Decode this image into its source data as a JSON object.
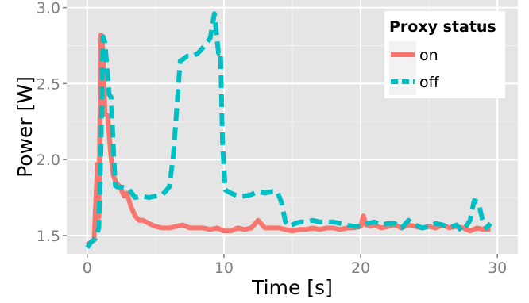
{
  "chart_data": {
    "type": "line",
    "title": "",
    "xlabel": "Time [s]",
    "ylabel": "Power [W]",
    "xlim": [
      -1.5,
      31.5
    ],
    "ylim": [
      1.38,
      3.05
    ],
    "xticks": [
      0,
      10,
      20,
      30
    ],
    "yticks": [
      1.5,
      2.0,
      2.5,
      3.0
    ],
    "ytick_labels": [
      "1.5",
      "2.0",
      "2.5",
      "3.0"
    ],
    "grid": true,
    "legend": {
      "title": "Proxy status",
      "position": "top-right"
    },
    "series": [
      {
        "name": "on",
        "color": "#f8766d",
        "dash": "solid",
        "x": [
          0.0,
          0.3,
          0.5,
          0.75,
          0.85,
          1.0,
          1.1,
          1.3,
          1.5,
          1.7,
          1.9,
          2.1,
          2.3,
          2.5,
          2.7,
          2.9,
          3.2,
          3.5,
          3.8,
          4.1,
          4.5,
          5.0,
          5.5,
          6.0,
          6.5,
          7.0,
          7.5,
          8.0,
          8.5,
          9.0,
          9.5,
          10.0,
          10.5,
          11.0,
          11.5,
          12.0,
          12.5,
          13.0,
          13.5,
          14.0,
          14.5,
          15.0,
          15.5,
          16.0,
          16.5,
          17.0,
          17.5,
          18.0,
          18.5,
          19.0,
          19.5,
          20.0,
          20.2,
          20.4,
          20.7,
          21.0,
          21.5,
          22.0,
          22.5,
          23.0,
          23.5,
          24.0,
          24.5,
          25.0,
          25.5,
          26.0,
          26.5,
          27.0,
          27.5,
          28.0,
          28.5,
          29.0,
          29.5
        ],
        "y": [
          1.44,
          1.46,
          1.47,
          1.97,
          1.62,
          2.82,
          2.8,
          2.3,
          2.29,
          2.05,
          1.9,
          1.85,
          1.83,
          1.8,
          1.76,
          1.78,
          1.69,
          1.63,
          1.6,
          1.6,
          1.58,
          1.56,
          1.55,
          1.55,
          1.56,
          1.57,
          1.55,
          1.55,
          1.55,
          1.54,
          1.55,
          1.53,
          1.53,
          1.55,
          1.54,
          1.55,
          1.6,
          1.55,
          1.55,
          1.55,
          1.54,
          1.53,
          1.54,
          1.54,
          1.55,
          1.54,
          1.55,
          1.55,
          1.54,
          1.55,
          1.55,
          1.56,
          1.63,
          1.57,
          1.56,
          1.57,
          1.55,
          1.56,
          1.57,
          1.55,
          1.57,
          1.56,
          1.55,
          1.56,
          1.55,
          1.57,
          1.55,
          1.56,
          1.55,
          1.53,
          1.55,
          1.54,
          1.54
        ]
      },
      {
        "name": "off",
        "color": "#00bfc4",
        "dash": "dashed",
        "x": [
          0.0,
          0.3,
          0.6,
          0.85,
          1.0,
          1.15,
          1.3,
          1.45,
          1.6,
          1.75,
          1.9,
          2.05,
          2.2,
          2.5,
          3.0,
          3.5,
          4.0,
          4.5,
          5.0,
          5.5,
          6.0,
          6.3,
          6.6,
          6.8,
          7.0,
          7.3,
          7.7,
          8.1,
          8.6,
          9.0,
          9.3,
          9.6,
          9.75,
          9.9,
          10.1,
          10.5,
          11.0,
          11.5,
          12.0,
          12.5,
          13.0,
          13.5,
          13.9,
          14.2,
          14.5,
          14.8,
          15.2,
          15.6,
          16.0,
          16.5,
          17.0,
          17.5,
          18.0,
          18.5,
          19.0,
          19.5,
          20.0,
          20.5,
          21.0,
          21.5,
          22.0,
          22.5,
          23.0,
          23.5,
          24.0,
          24.5,
          25.0,
          25.5,
          26.0,
          26.5,
          27.0,
          27.4,
          27.7,
          28.0,
          28.3,
          28.6,
          28.9,
          29.2,
          29.5
        ],
        "y": [
          1.42,
          1.46,
          1.48,
          1.55,
          2.05,
          2.81,
          2.77,
          2.6,
          2.43,
          2.41,
          2.1,
          1.83,
          1.82,
          1.82,
          1.81,
          1.75,
          1.76,
          1.75,
          1.76,
          1.77,
          1.82,
          2.03,
          2.4,
          2.65,
          2.66,
          2.68,
          2.68,
          2.7,
          2.75,
          2.8,
          2.96,
          2.7,
          2.71,
          2.1,
          1.8,
          1.78,
          1.76,
          1.76,
          1.77,
          1.79,
          1.78,
          1.79,
          1.79,
          1.72,
          1.59,
          1.56,
          1.58,
          1.59,
          1.59,
          1.6,
          1.59,
          1.59,
          1.59,
          1.58,
          1.57,
          1.56,
          1.56,
          1.58,
          1.59,
          1.57,
          1.58,
          1.58,
          1.55,
          1.6,
          1.57,
          1.55,
          1.56,
          1.58,
          1.57,
          1.55,
          1.57,
          1.53,
          1.56,
          1.6,
          1.73,
          1.72,
          1.61,
          1.55,
          1.58
        ]
      }
    ]
  }
}
